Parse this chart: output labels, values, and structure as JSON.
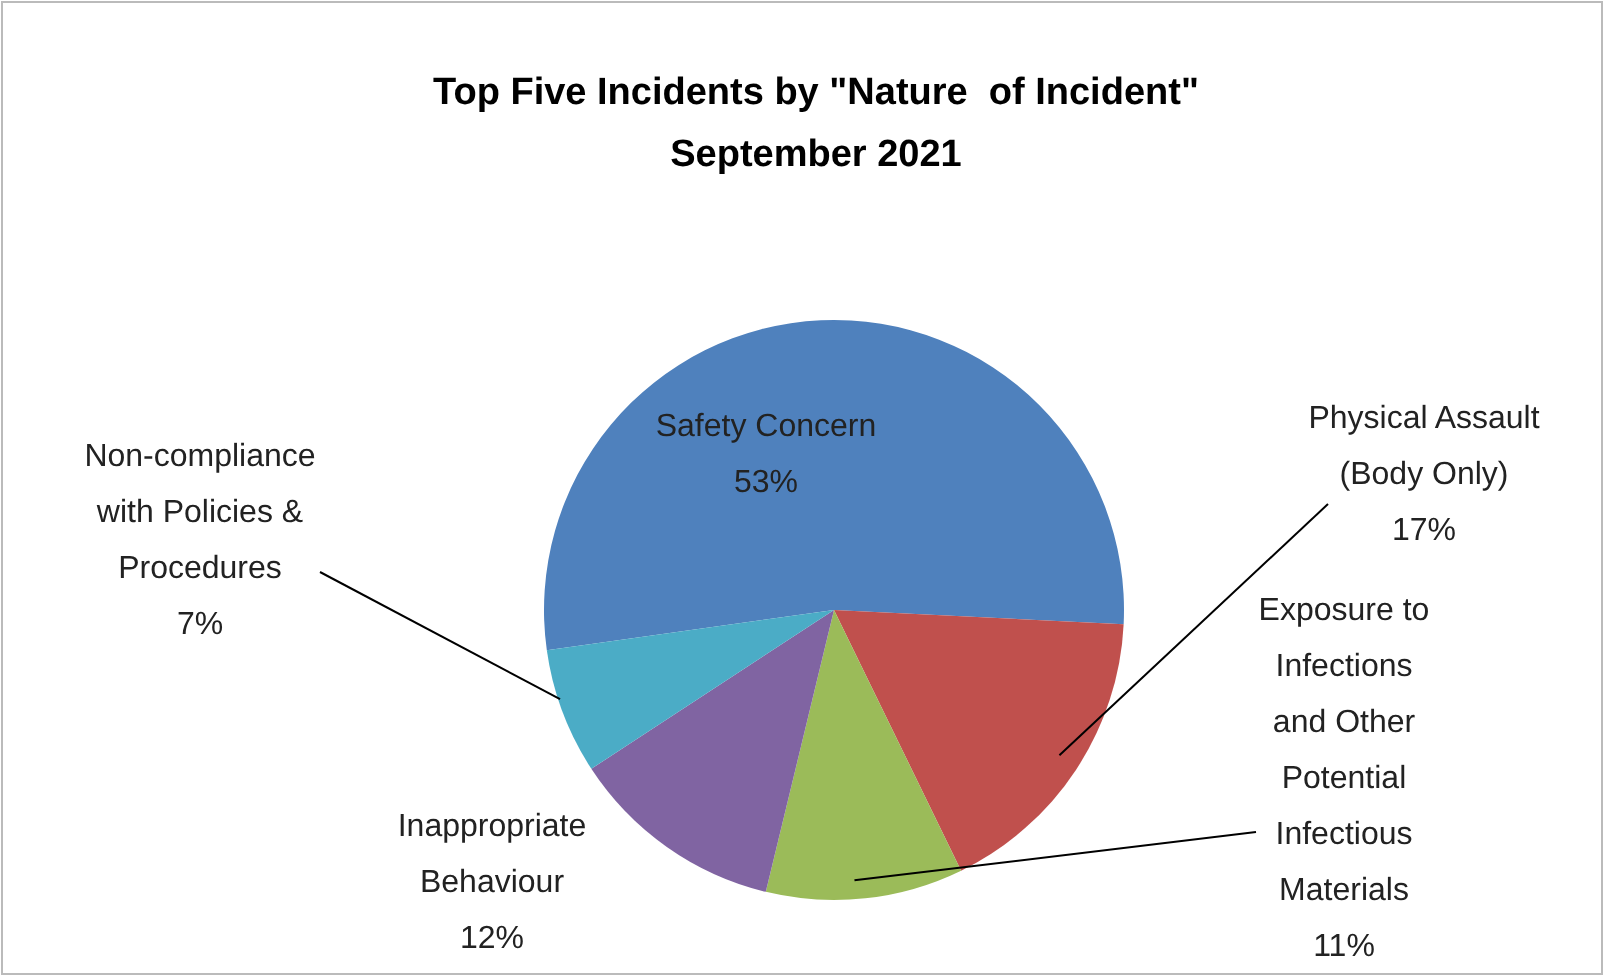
{
  "chart_data": {
    "type": "pie",
    "title": "Top Five Incidents by \"Nature  of Incident\"\nSeptember 2021",
    "categories": [
      "Safety Concern",
      "Physical Assault (Body Only)",
      "Exposure to Infections and Other Potential Infectious Materials",
      "Inappropriate Behaviour",
      "Non-compliance with Policies & Procedures"
    ],
    "values": [
      53,
      17,
      11,
      12,
      7
    ],
    "colors": [
      "#4f81bd",
      "#c0504d",
      "#9bbb59",
      "#8064a2",
      "#4bacc6"
    ],
    "value_labels": [
      "53%",
      "17%",
      "11%",
      "12%",
      "7%"
    ],
    "legend": false
  }
}
